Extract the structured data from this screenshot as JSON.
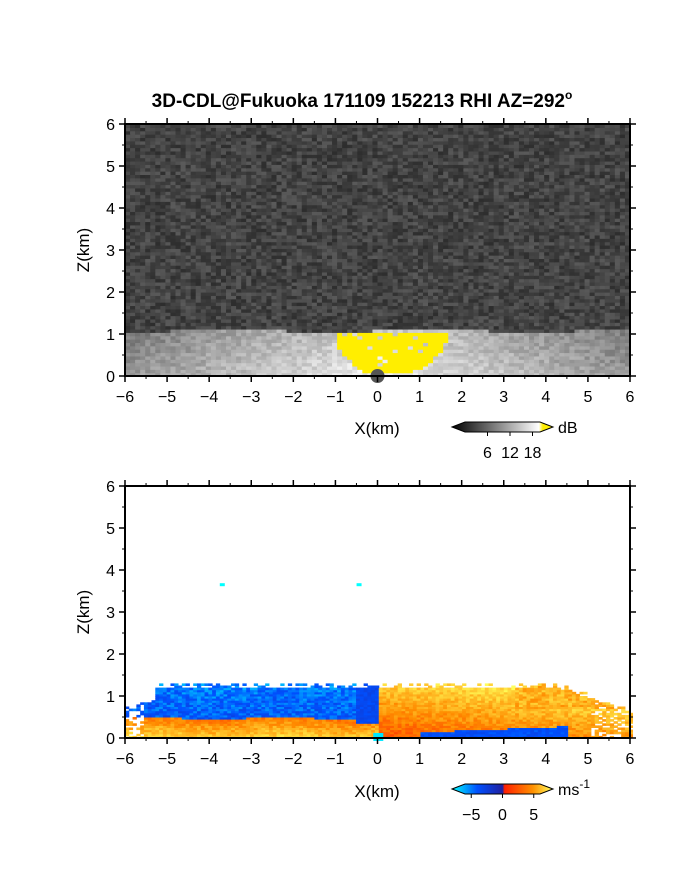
{
  "figure": {
    "title_main": "3D-CDL@Fukuoka 171109 152213 RHI AZ=292",
    "title_degree": "o"
  },
  "chart_data": [
    {
      "type": "heatmap",
      "panel": "top",
      "variable": "signal intensity",
      "xlabel": "X(km)",
      "ylabel": "Z(km)",
      "xlim": [
        -6,
        6
      ],
      "ylim": [
        0,
        6
      ],
      "xticks": [
        "-6",
        "-5",
        "-4",
        "-3",
        "-2",
        "-1",
        "0",
        "1",
        "2",
        "3",
        "4",
        "5",
        "6"
      ],
      "yticks": [
        "0",
        "1",
        "2",
        "3",
        "4",
        "5",
        "6"
      ],
      "colorbar": {
        "unit": "dB",
        "ticks": [
          "6",
          "12",
          "18"
        ],
        "range": [
          0,
          20
        ],
        "colors": [
          "#000000",
          "#ffffff",
          "#ffee00"
        ]
      },
      "features": {
        "boundary_layer_top_km": 1.05,
        "background": "dark grey noise above boundary layer",
        "high_return_region": {
          "x": [
            -1.0,
            1.6
          ],
          "z": [
            0.0,
            1.05
          ],
          "color": "yellow"
        },
        "colors": {
          "noise": "#3a3a3a",
          "layer_low": "#c8c8c8",
          "layer_high": "#f0f0f0",
          "saturation": "#ffee00"
        }
      }
    },
    {
      "type": "heatmap",
      "panel": "bottom",
      "variable": "radial velocity",
      "xlabel": "X(km)",
      "ylabel": "Z(km)",
      "xlim": [
        -6,
        6
      ],
      "ylim": [
        0,
        6
      ],
      "xticks": [
        "-6",
        "-5",
        "-4",
        "-3",
        "-2",
        "-1",
        "0",
        "1",
        "2",
        "3",
        "4",
        "5",
        "6"
      ],
      "yticks": [
        "0",
        "1",
        "2",
        "3",
        "4",
        "5",
        "6"
      ],
      "colorbar": {
        "unit": "ms",
        "unit_exponent": "-1",
        "ticks": [
          "-5",
          "0",
          "5"
        ],
        "range": [
          -6,
          6
        ],
        "colors": [
          "#00ffff",
          "#0040ff",
          "#ff2000",
          "#ffff60"
        ]
      },
      "features": {
        "echo_top_km": 1.2,
        "negative_region": {
          "x": [
            -5.8,
            0.0
          ],
          "z": [
            0.5,
            1.2
          ]
        },
        "positive_region": {
          "x": [
            0.0,
            6.0
          ],
          "z": [
            0.3,
            1.2
          ]
        },
        "near_surface_positive": {
          "x": [
            -6.0,
            -0.5
          ],
          "z": [
            0.0,
            0.5
          ]
        },
        "isolated_points": [
          {
            "x": -3.7,
            "z": 3.65
          },
          {
            "x": -0.45,
            "z": 3.65
          }
        ]
      }
    }
  ]
}
